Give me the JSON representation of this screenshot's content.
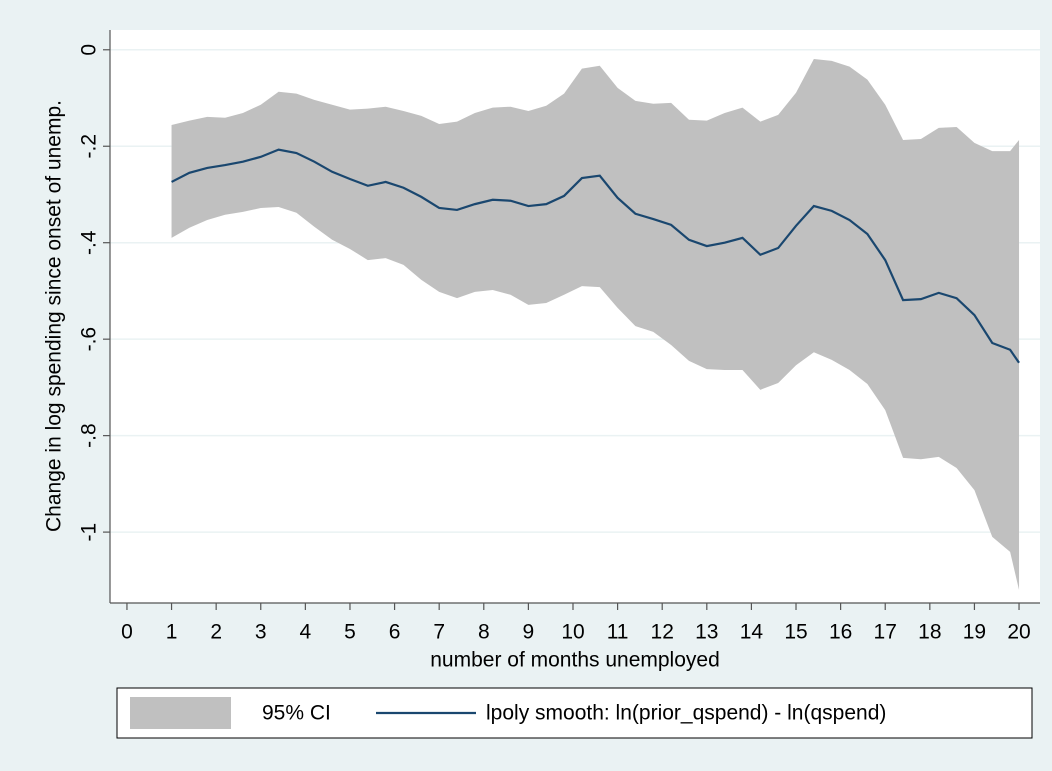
{
  "chart_data": {
    "type": "line",
    "x_label": "number of months unemployed",
    "y_label": "Change in log spending since onset of unemp.",
    "x": [
      1,
      1.4,
      1.8,
      2.2,
      2.6,
      3.0,
      3.4,
      3.8,
      4.2,
      4.6,
      5.0,
      5.4,
      5.8,
      6.2,
      6.6,
      7.0,
      7.4,
      7.8,
      8.2,
      8.6,
      9.0,
      9.4,
      9.8,
      10.2,
      10.6,
      11.0,
      11.4,
      11.8,
      12.2,
      12.6,
      13.0,
      13.4,
      13.8,
      14.2,
      14.6,
      15.0,
      15.4,
      15.8,
      16.2,
      16.6,
      17.0,
      17.4,
      17.8,
      18.2,
      18.6,
      19.0,
      19.4,
      19.8,
      20.0
    ],
    "series": [
      {
        "name": "95% CI",
        "kind": "band",
        "color": "#c0c0c0",
        "upper": [
          -0.156,
          -0.147,
          -0.139,
          -0.141,
          -0.131,
          -0.114,
          -0.087,
          -0.091,
          -0.104,
          -0.114,
          -0.124,
          -0.122,
          -0.118,
          -0.127,
          -0.137,
          -0.154,
          -0.149,
          -0.131,
          -0.12,
          -0.118,
          -0.127,
          -0.116,
          -0.091,
          -0.039,
          -0.033,
          -0.079,
          -0.106,
          -0.112,
          -0.11,
          -0.145,
          -0.147,
          -0.131,
          -0.12,
          -0.149,
          -0.135,
          -0.089,
          -0.019,
          -0.023,
          -0.035,
          -0.062,
          -0.114,
          -0.187,
          -0.185,
          -0.162,
          -0.16,
          -0.193,
          -0.21,
          -0.21,
          -0.187
        ],
        "lower": [
          -0.39,
          -0.369,
          -0.353,
          -0.342,
          -0.336,
          -0.328,
          -0.326,
          -0.338,
          -0.367,
          -0.394,
          -0.413,
          -0.436,
          -0.432,
          -0.446,
          -0.477,
          -0.502,
          -0.515,
          -0.502,
          -0.498,
          -0.508,
          -0.529,
          -0.525,
          -0.508,
          -0.49,
          -0.492,
          -0.535,
          -0.573,
          -0.585,
          -0.612,
          -0.645,
          -0.662,
          -0.664,
          -0.664,
          -0.705,
          -0.691,
          -0.654,
          -0.627,
          -0.643,
          -0.664,
          -0.693,
          -0.747,
          -0.846,
          -0.849,
          -0.844,
          -0.867,
          -0.913,
          -1.01,
          -1.041,
          -1.12
        ]
      },
      {
        "name": "lpoly smooth: ln(prior_qspend) - ln(qspend)",
        "kind": "line",
        "color": "#1a476f",
        "values": [
          -0.274,
          -0.255,
          -0.245,
          -0.239,
          -0.232,
          -0.222,
          -0.207,
          -0.214,
          -0.232,
          -0.253,
          -0.268,
          -0.282,
          -0.274,
          -0.286,
          -0.305,
          -0.328,
          -0.332,
          -0.32,
          -0.311,
          -0.313,
          -0.324,
          -0.32,
          -0.303,
          -0.266,
          -0.261,
          -0.307,
          -0.34,
          -0.351,
          -0.363,
          -0.394,
          -0.407,
          -0.4,
          -0.39,
          -0.425,
          -0.411,
          -0.365,
          -0.324,
          -0.334,
          -0.353,
          -0.382,
          -0.436,
          -0.519,
          -0.517,
          -0.504,
          -0.515,
          -0.55,
          -0.608,
          -0.622,
          -0.649
        ]
      }
    ],
    "xlim": [
      -0.38,
      20.47
    ],
    "xticks": [
      0,
      1,
      2,
      3,
      4,
      5,
      6,
      7,
      8,
      9,
      10,
      11,
      12,
      13,
      14,
      15,
      16,
      17,
      18,
      19,
      20
    ],
    "ylim": [
      -1.147,
      0.041
    ],
    "yticks": [
      0,
      {
        "value": -0.2,
        "label": "-.2"
      },
      {
        "value": -0.4,
        "label": "-.4"
      },
      {
        "value": -0.6,
        "label": "-.6"
      },
      {
        "value": -0.8,
        "label": "-.8"
      },
      -1
    ],
    "grid": true,
    "legend": "bottom"
  }
}
